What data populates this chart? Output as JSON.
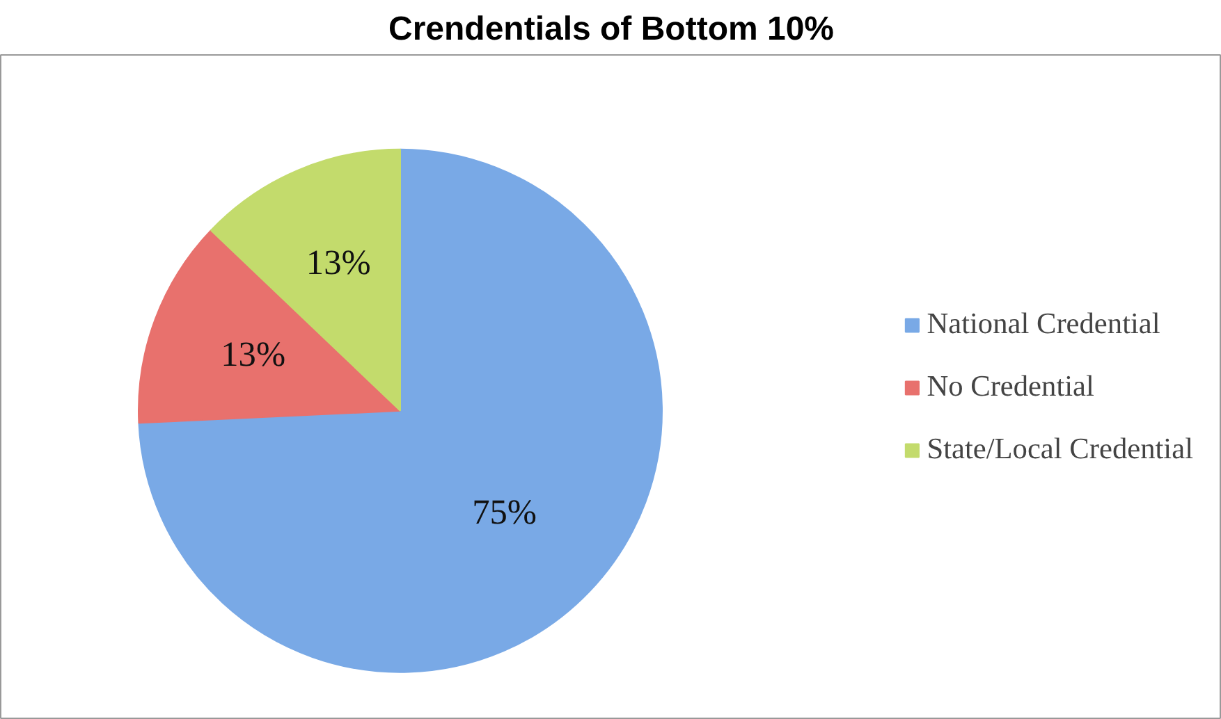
{
  "chart_data": {
    "type": "pie",
    "title": "Crendentials of Bottom 10%",
    "categories": [
      "National Credential",
      "No Credential",
      "State/Local Credential"
    ],
    "values": [
      75,
      13,
      13
    ],
    "colors": [
      "#79a9e6",
      "#e8716d",
      "#c3db6c"
    ],
    "value_labels": [
      "75%",
      "13%",
      "13%"
    ],
    "legend": "right"
  }
}
